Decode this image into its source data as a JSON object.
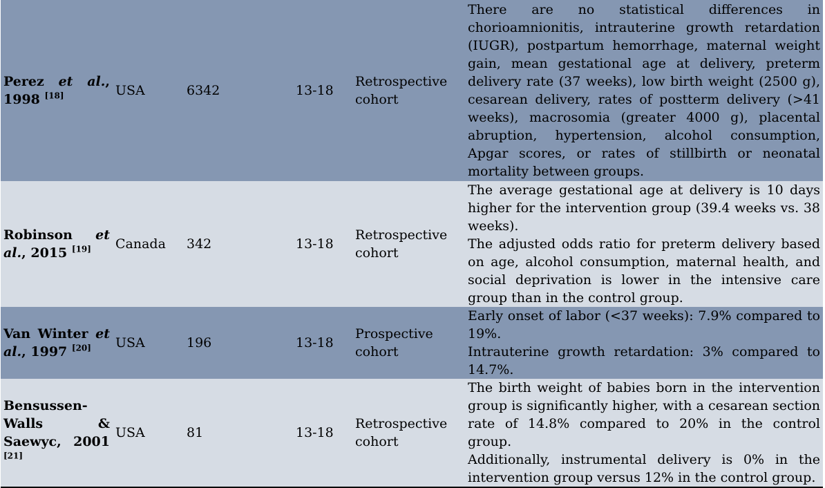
{
  "rows": [
    {
      "author": "Perez",
      "etal": "et al.",
      "year": ", 1998",
      "ref": "[18]",
      "country": "USA",
      "n": "6342",
      "age": "13-18",
      "design": "Retrospective cohort",
      "results": [
        "There are no statistical differences in chorioamnionitis, intrauterine growth retardation (IUGR), postpartum hemorrhage, maternal weight gain, mean gestational age at delivery, preterm delivery rate (37 weeks), low birth weight (2500 g), cesarean delivery, rates of postterm delivery (>41 weeks), macrosomia (greater 4000 g), placental abruption, hypertension, alcohol consumption, Apgar scores, or rates of stillbirth or neonatal mortality between groups."
      ]
    },
    {
      "author": "Robinson",
      "etal": "et al.",
      "year": ", 2015",
      "ref": "[19]",
      "country": "Canada",
      "n": "342",
      "age": "13-18",
      "design": "Retrospective cohort",
      "results": [
        "The average gestational age at delivery is 10 days higher for the intervention group (39.4 weeks vs. 38 weeks).",
        "The adjusted odds ratio for preterm delivery based on age, alcohol consumption, maternal health, and social deprivation is lower in the intensive care group than in the control group."
      ]
    },
    {
      "author": "Van Winter",
      "etal": "et al.",
      "year": ", 1997",
      "ref": "[20]",
      "country": "USA",
      "n": "196",
      "age": "13-18",
      "design": "Prospective cohort",
      "results": [
        "Early onset of labor (<37 weeks): 7.9% compared to 19%.",
        "Intrauterine growth retardation: 3% compared to 14.7%."
      ]
    },
    {
      "author": "Bensussen-Walls & Saewyc",
      "etal": "",
      "year": ", 2001",
      "ref": "[21]",
      "country": "USA",
      "n": "81",
      "age": "13-18",
      "design": "Retrospective cohort",
      "results": [
        "The birth weight of babies born in the intervention group is significantly higher, with a cesarean section rate of 14.8% compared to 20% in the control group.",
        "Additionally, instrumental delivery is 0% in the intervention group versus 12% in the control group."
      ]
    }
  ]
}
